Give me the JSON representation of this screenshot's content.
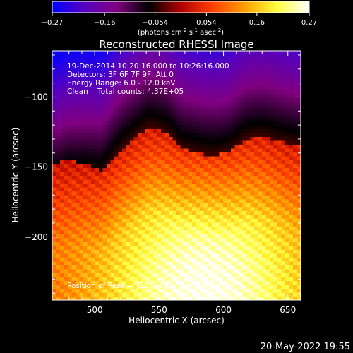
{
  "chart_data": {
    "type": "heatmap",
    "title": "Reconstructed RHESSI Image",
    "xlabel": "Heliocentric X (arcsec)",
    "ylabel": "Heliocentric Y (arcsec)",
    "xlim": [
      467,
      660
    ],
    "ylim": [
      -245,
      -67
    ],
    "x_ticks": [
      500,
      550,
      600,
      650
    ],
    "y_ticks": [
      -100,
      -150,
      -200
    ],
    "colorbar": {
      "range": [
        -0.27,
        0.27
      ],
      "tick_values": [
        -0.27,
        -0.16,
        -0.054,
        0.054,
        0.16,
        0.27
      ],
      "tick_labels": [
        "-0.27",
        "-0.16",
        "-0.054",
        "0.054",
        "0.16",
        "0.27"
      ],
      "label_main": "(photons cm",
      "label_exp1": "-2",
      "label_mid": " s",
      "label_exp2": "-1",
      "label_mid2": " asec",
      "label_exp3": "-2",
      "label_end": ")",
      "colormap": [
        "#0000ff",
        "#5500c0",
        "#800080",
        "#000000",
        "#b00000",
        "#ff4000",
        "#ffa000",
        "#ffff40",
        "#ffffff"
      ]
    },
    "annotations": [
      "19-Dec-2014 10:20:16.000 to 10:26:16.000",
      "Detectors: 3F 6F 7F 9F, Att 0",
      "Energy Range: 6.0 - 12.0 keV",
      "Clean    Total counts: 4.37E+05"
    ],
    "peak_label": "Position of Peak = [585,-240]",
    "peak": [
      585,
      -240
    ],
    "field": {
      "baseline_y": [
        -147,
        -145,
        -148,
        -152,
        -140,
        -130,
        -121,
        -125,
        -137,
        -140,
        -142,
        -139,
        -130,
        -128,
        -132,
        -135
      ],
      "baseline_x": [
        467,
        480,
        493,
        505,
        518,
        530,
        542,
        555,
        568,
        580,
        592,
        605,
        617,
        630,
        645,
        660
      ]
    }
  },
  "footer": {
    "date": "20-May-2022 19:55"
  }
}
